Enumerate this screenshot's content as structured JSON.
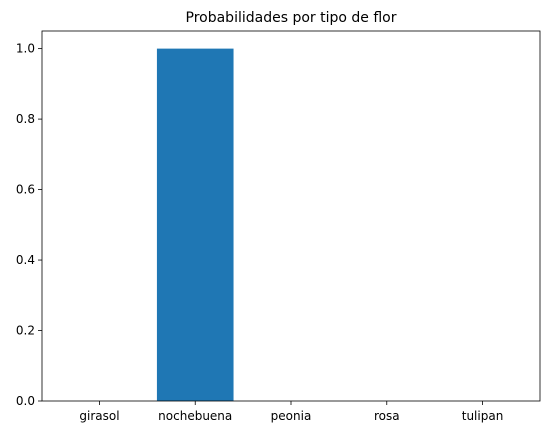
{
  "chart_data": {
    "type": "bar",
    "title": "Probabilidades por tipo de flor",
    "categories": [
      "girasol",
      "nochebuena",
      "peonia",
      "rosa",
      "tulipan"
    ],
    "values": [
      0.0,
      1.0,
      0.0,
      0.0,
      0.0
    ],
    "xlabel": "",
    "ylabel": "",
    "ylim": [
      0,
      1.05
    ],
    "yticks": [
      0.0,
      0.2,
      0.4,
      0.6,
      0.8,
      1.0
    ],
    "ytick_labels": [
      "0.0",
      "0.2",
      "0.4",
      "0.6",
      "0.8",
      "1.0"
    ],
    "bar_color": "#1f77b4",
    "grid": false,
    "legend": "none"
  }
}
